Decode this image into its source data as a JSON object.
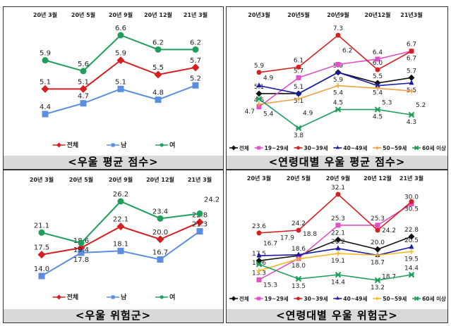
{
  "chart_data": [
    {
      "type": "line",
      "title": "<우울 평균 점수>",
      "categories": [
        "20년 3월",
        "20년 5월",
        "20년 9월",
        "20년 12월",
        "21년 3월"
      ],
      "series": [
        {
          "name": "전체",
          "values": [
            5.1,
            5.1,
            5.9,
            5.5,
            5.7
          ],
          "color": "#d42020",
          "marker": "diamond"
        },
        {
          "name": "남",
          "values": [
            4.4,
            4.7,
            5.1,
            4.8,
            5.2
          ],
          "color": "#5b8ee0",
          "marker": "square"
        },
        {
          "name": "여",
          "values": [
            5.9,
            5.6,
            6.6,
            6.2,
            6.2
          ],
          "color": "#1e9e5a",
          "marker": "circle"
        }
      ],
      "legend": "bottom",
      "grid": false
    },
    {
      "type": "line",
      "title": "<연령대별 우울 평균 점수>",
      "categories": [
        "20년3월",
        "20년5월",
        "20년9월",
        "20년12월",
        "21년3월"
      ],
      "series": [
        {
          "name": "전체",
          "values": [
            5.1,
            5.1,
            5.9,
            5.5,
            5.7
          ],
          "color": "#111111",
          "marker": "diamond"
        },
        {
          "name": "19~29세",
          "values": [
            4.6,
            5.7,
            6.2,
            6.4,
            6.7
          ],
          "color": "#e050c8",
          "marker": "square"
        },
        {
          "name": "30~39세",
          "values": [
            5.9,
            6.1,
            7.3,
            6.0,
            6.7
          ],
          "color": "#d42020",
          "marker": "circle"
        },
        {
          "name": "40~49세",
          "values": [
            5.4,
            5.1,
            5.9,
            5.4,
            5.5
          ],
          "color": "#1a1aa8",
          "marker": "triangle"
        },
        {
          "name": "50~59세",
          "values": [
            4.7,
            4.9,
            5.4,
            5.3,
            5.2
          ],
          "color": "#f0a040",
          "marker": "plus"
        },
        {
          "name": "60세 이상",
          "values": [
            4.9,
            3.8,
            4.5,
            4.5,
            4.3
          ],
          "color": "#1e9e5a",
          "marker": "x"
        }
      ],
      "legend": "bottom",
      "grid": false
    },
    {
      "type": "line",
      "title": "<우울 위험군>",
      "categories": [
        "20년 3월",
        "20년 5월",
        "20년 9월",
        "20년 12월",
        "21년 3월"
      ],
      "series": [
        {
          "name": "전체",
          "values": [
            17.5,
            18.6,
            22.1,
            20.0,
            22.8
          ],
          "color": "#d42020",
          "marker": "diamond"
        },
        {
          "name": "남",
          "values": [
            14.0,
            17.8,
            18.1,
            16.7,
            21.3
          ],
          "color": "#5b8ee0",
          "marker": "square"
        },
        {
          "name": "여",
          "values": [
            21.1,
            19.4,
            26.2,
            23.4,
            24.2
          ],
          "color": "#1e9e5a",
          "marker": "circle"
        }
      ],
      "legend": "bottom",
      "grid": false
    },
    {
      "type": "line",
      "title": "<연령대별 우울 위험군>",
      "categories": [
        "20년 3월",
        "20년 5월",
        "20년 9월",
        "20년 12월",
        "21년 3월"
      ],
      "series": [
        {
          "name": "전체",
          "values": [
            17.5,
            18.6,
            22.1,
            20.0,
            22.8
          ],
          "color": "#111111",
          "marker": "diamond"
        },
        {
          "name": "19~29세",
          "values": [
            13.3,
            18.0,
            25.3,
            25.3,
            30.0
          ],
          "color": "#e050c8",
          "marker": "square"
        },
        {
          "name": "30~39세",
          "values": [
            23.6,
            24.2,
            32.1,
            24.2,
            30.5
          ],
          "color": "#d42020",
          "marker": "circle"
        },
        {
          "name": "40~49세",
          "values": [
            18.6,
            18.8,
            20.2,
            18.7,
            20.5
          ],
          "color": "#1a1aa8",
          "marker": "triangle"
        },
        {
          "name": "50~59세",
          "values": [
            15.3,
            17.9,
            19.1,
            18.7,
            19.5
          ],
          "color": "#f5b820",
          "marker": "plus"
        },
        {
          "name": "60세 이상",
          "values": [
            16.7,
            13.5,
            14.4,
            13.2,
            14.4
          ],
          "color": "#1e9e5a",
          "marker": "x"
        }
      ],
      "legend": "bottom",
      "grid": false
    }
  ]
}
